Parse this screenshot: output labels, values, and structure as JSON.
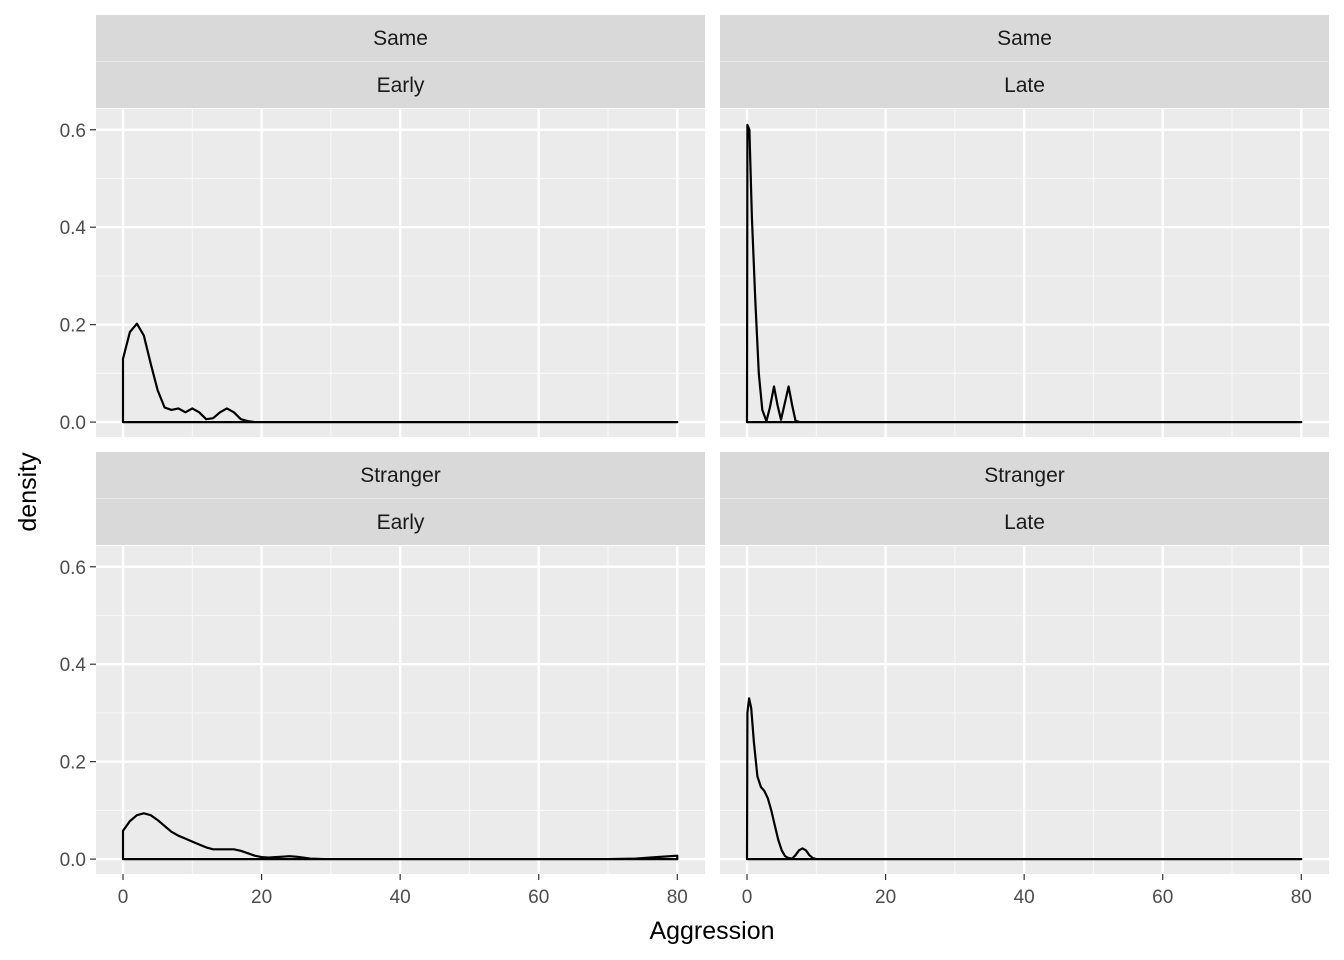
{
  "chart_data": {
    "type": "area",
    "geom": "density",
    "xlabel": "Aggression",
    "ylabel": "density",
    "xlim": [
      -3.9,
      84.0
    ],
    "ylim": [
      -0.0306,
      0.6426
    ],
    "x_ticks": [
      0,
      20,
      40,
      60,
      80
    ],
    "y_ticks": [
      0.0,
      0.2,
      0.4,
      0.6
    ],
    "x_tick_labels": [
      "0",
      "20",
      "40",
      "60",
      "80"
    ],
    "y_tick_labels": [
      "0.0",
      "0.2",
      "0.4",
      "0.6"
    ],
    "grid": true,
    "facet_rows": [
      "Same",
      "Stranger"
    ],
    "facet_cols": [
      "Early",
      "Late"
    ],
    "panels": [
      {
        "strip_top": "Same",
        "strip_bottom": "Early",
        "x_end": 80,
        "curve": [
          [
            0,
            0.13
          ],
          [
            1,
            0.185
          ],
          [
            2,
            0.202
          ],
          [
            3,
            0.178
          ],
          [
            4,
            0.12
          ],
          [
            5,
            0.065
          ],
          [
            6,
            0.03
          ],
          [
            7,
            0.025
          ],
          [
            8,
            0.028
          ],
          [
            9,
            0.02
          ],
          [
            10,
            0.028
          ],
          [
            11,
            0.02
          ],
          [
            12,
            0.006
          ],
          [
            13,
            0.008
          ],
          [
            14,
            0.02
          ],
          [
            15,
            0.028
          ],
          [
            16,
            0.02
          ],
          [
            17,
            0.006
          ],
          [
            18,
            0.002
          ],
          [
            19,
            0.0
          ],
          [
            25,
            0.0
          ],
          [
            80,
            0.0
          ]
        ]
      },
      {
        "strip_top": "Same",
        "strip_bottom": "Late",
        "x_end": 80,
        "curve": [
          [
            0,
            0.0
          ],
          [
            0.05,
            0.61
          ],
          [
            0.35,
            0.6
          ],
          [
            0.7,
            0.42
          ],
          [
            1.2,
            0.25
          ],
          [
            1.7,
            0.1
          ],
          [
            2.2,
            0.025
          ],
          [
            2.8,
            0.002
          ],
          [
            3.3,
            0.03
          ],
          [
            3.9,
            0.073
          ],
          [
            4.4,
            0.035
          ],
          [
            4.9,
            0.005
          ],
          [
            5.4,
            0.035
          ],
          [
            6.0,
            0.073
          ],
          [
            6.5,
            0.035
          ],
          [
            7.0,
            0.003
          ],
          [
            7.6,
            0.0
          ],
          [
            80,
            0.0
          ]
        ]
      },
      {
        "strip_top": "Stranger",
        "strip_bottom": "Early",
        "x_end": 80,
        "curve": [
          [
            0,
            0.058
          ],
          [
            1,
            0.078
          ],
          [
            2,
            0.09
          ],
          [
            3,
            0.094
          ],
          [
            4,
            0.09
          ],
          [
            5,
            0.08
          ],
          [
            6,
            0.068
          ],
          [
            7,
            0.056
          ],
          [
            8,
            0.048
          ],
          [
            9,
            0.042
          ],
          [
            10,
            0.036
          ],
          [
            11,
            0.03
          ],
          [
            12,
            0.024
          ],
          [
            13,
            0.02
          ],
          [
            14,
            0.02
          ],
          [
            15,
            0.02
          ],
          [
            16,
            0.02
          ],
          [
            17,
            0.017
          ],
          [
            18,
            0.012
          ],
          [
            19,
            0.007
          ],
          [
            20,
            0.004
          ],
          [
            21,
            0.003
          ],
          [
            22,
            0.004
          ],
          [
            23,
            0.005
          ],
          [
            24,
            0.006
          ],
          [
            25,
            0.005
          ],
          [
            26,
            0.003
          ],
          [
            27,
            0.001
          ],
          [
            29,
            0.0
          ],
          [
            70,
            0.0
          ],
          [
            74,
            0.001
          ],
          [
            77,
            0.004
          ],
          [
            80,
            0.007
          ]
        ]
      },
      {
        "strip_top": "Stranger",
        "strip_bottom": "Late",
        "x_end": 80,
        "curve": [
          [
            0,
            0.0
          ],
          [
            0.05,
            0.3
          ],
          [
            0.3,
            0.33
          ],
          [
            0.6,
            0.31
          ],
          [
            1,
            0.24
          ],
          [
            1.5,
            0.17
          ],
          [
            2,
            0.148
          ],
          [
            2.5,
            0.14
          ],
          [
            3,
            0.125
          ],
          [
            3.5,
            0.1
          ],
          [
            4,
            0.07
          ],
          [
            4.5,
            0.04
          ],
          [
            5,
            0.018
          ],
          [
            5.5,
            0.006
          ],
          [
            6,
            0.002
          ],
          [
            6.5,
            0.001
          ],
          [
            7,
            0.008
          ],
          [
            7.5,
            0.018
          ],
          [
            8,
            0.022
          ],
          [
            8.5,
            0.018
          ],
          [
            9,
            0.008
          ],
          [
            9.5,
            0.002
          ],
          [
            10,
            0.0
          ],
          [
            80,
            0.0
          ]
        ]
      }
    ]
  }
}
